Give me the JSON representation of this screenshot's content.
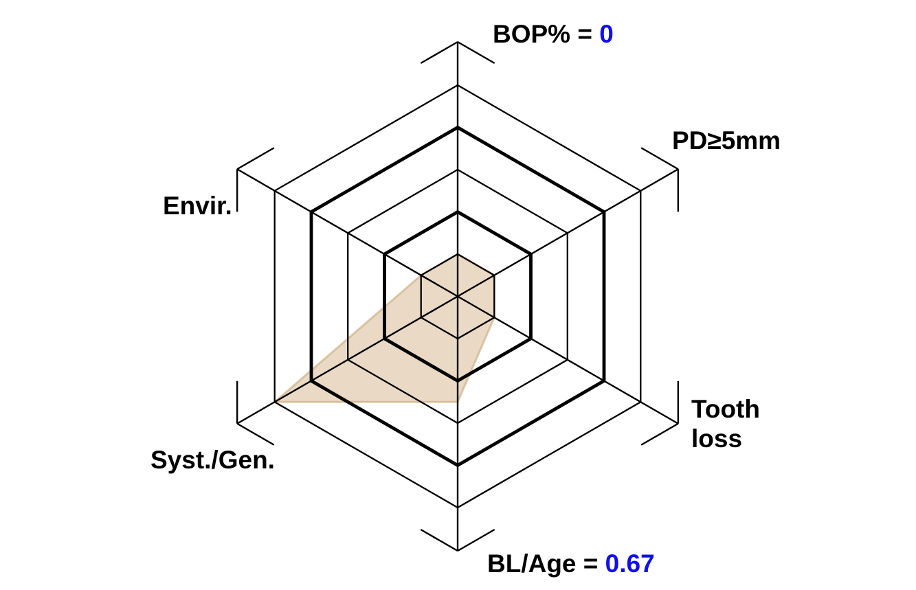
{
  "page": {
    "background": "#ffffff",
    "description": "Hexagonal periodontal risk assessment radar diagram"
  },
  "chart_data": {
    "type": "radar",
    "title": "",
    "rings": {
      "count": 5,
      "bold": [
        2,
        4
      ]
    },
    "axes": [
      {
        "name": "BOP%",
        "angle_deg": 90,
        "value_rings": 1.0,
        "label_text": "BOP% = ",
        "label_value": "0"
      },
      {
        "name": "PD>=5mm",
        "angle_deg": 30,
        "value_rings": 1.0,
        "label_text": "PD≥5mm",
        "label_value": ""
      },
      {
        "name": "Tooth loss",
        "angle_deg": -30,
        "value_rings": 1.0,
        "label_text": "Tooth\nloss",
        "label_value": ""
      },
      {
        "name": "BL/Age",
        "angle_deg": -90,
        "value_rings": 2.5,
        "label_text": "BL/Age = ",
        "label_value": "0.67"
      },
      {
        "name": "Syst./Gen.",
        "angle_deg": -150,
        "value_rings": 5.0,
        "label_text": "Syst./Gen.",
        "label_value": ""
      },
      {
        "name": "Envir.",
        "angle_deg": 150,
        "value_rings": 1.0,
        "label_text": "Envir.",
        "label_value": ""
      }
    ],
    "values_displayed": {
      "BOP%": "0",
      "BL/Age": "0.67"
    },
    "legend": "none",
    "grid": "hexagonal rings with 3 diameter axes and chevron end ticks",
    "colors": {
      "line": "#000000",
      "fill": "#d0ae7e",
      "fill_opacity": 0.45,
      "fill_stroke": "#bf9c63",
      "fill_stroke_opacity": 0.5,
      "value_text": "#0f0ff0",
      "label_text": "#000000"
    }
  }
}
